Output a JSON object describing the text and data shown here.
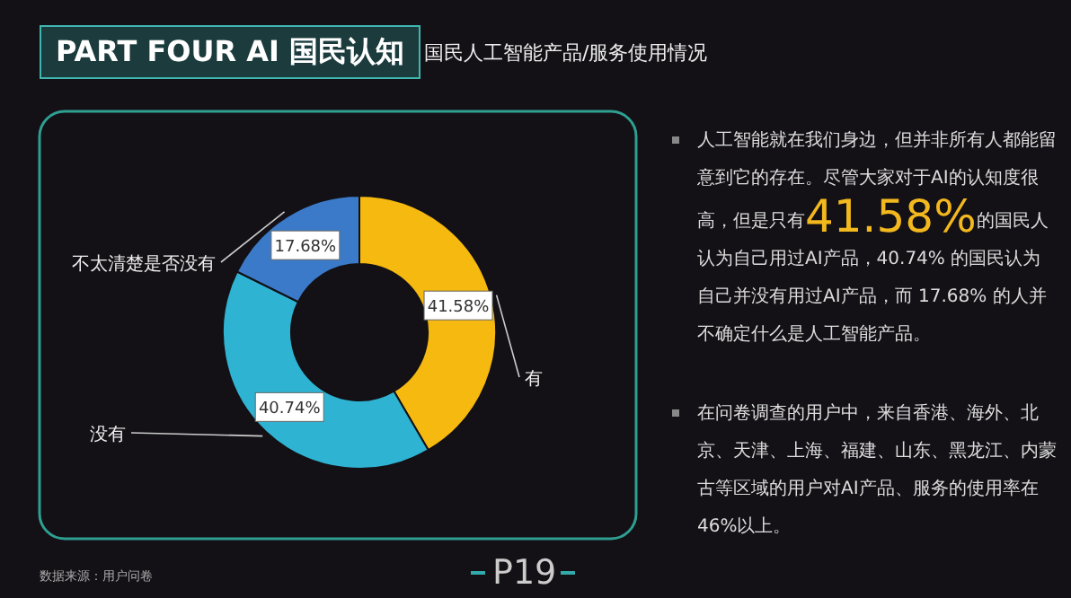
{
  "chart_data": {
    "type": "donut",
    "title": "PART FOUR AI 国民认知",
    "subtitle": "国民人工智能产品/服务使用情况",
    "categories": [
      "有",
      "没有",
      "不太清楚是否没有"
    ],
    "values": [
      41.58,
      40.74,
      17.68
    ],
    "colors": [
      "#f5b90f",
      "#2fb3d3",
      "#3b7ac9"
    ],
    "value_labels": [
      "41.58%",
      "40.74%",
      "17.68%"
    ],
    "annotations": [
      "人工智能就在我们身边，但并非所有人都能留意到它的存在。尽管大家对于AI的认知度很高，但是只有",
      "41.58%",
      "的国民人认为自己用过AI产品，40.74% 的国民认为自己并没有用过AI产品，而 17.68% 的人并不确定什么是人工智能产品。",
      "在问卷调查的用户中，来自香港、海外、北京、天津、上海、福建、山东、黑龙江、内蒙古等区域的用户对AI产品、服务的使用率在46%以上。",
      "数据来源：用户问卷",
      "P19"
    ]
  }
}
